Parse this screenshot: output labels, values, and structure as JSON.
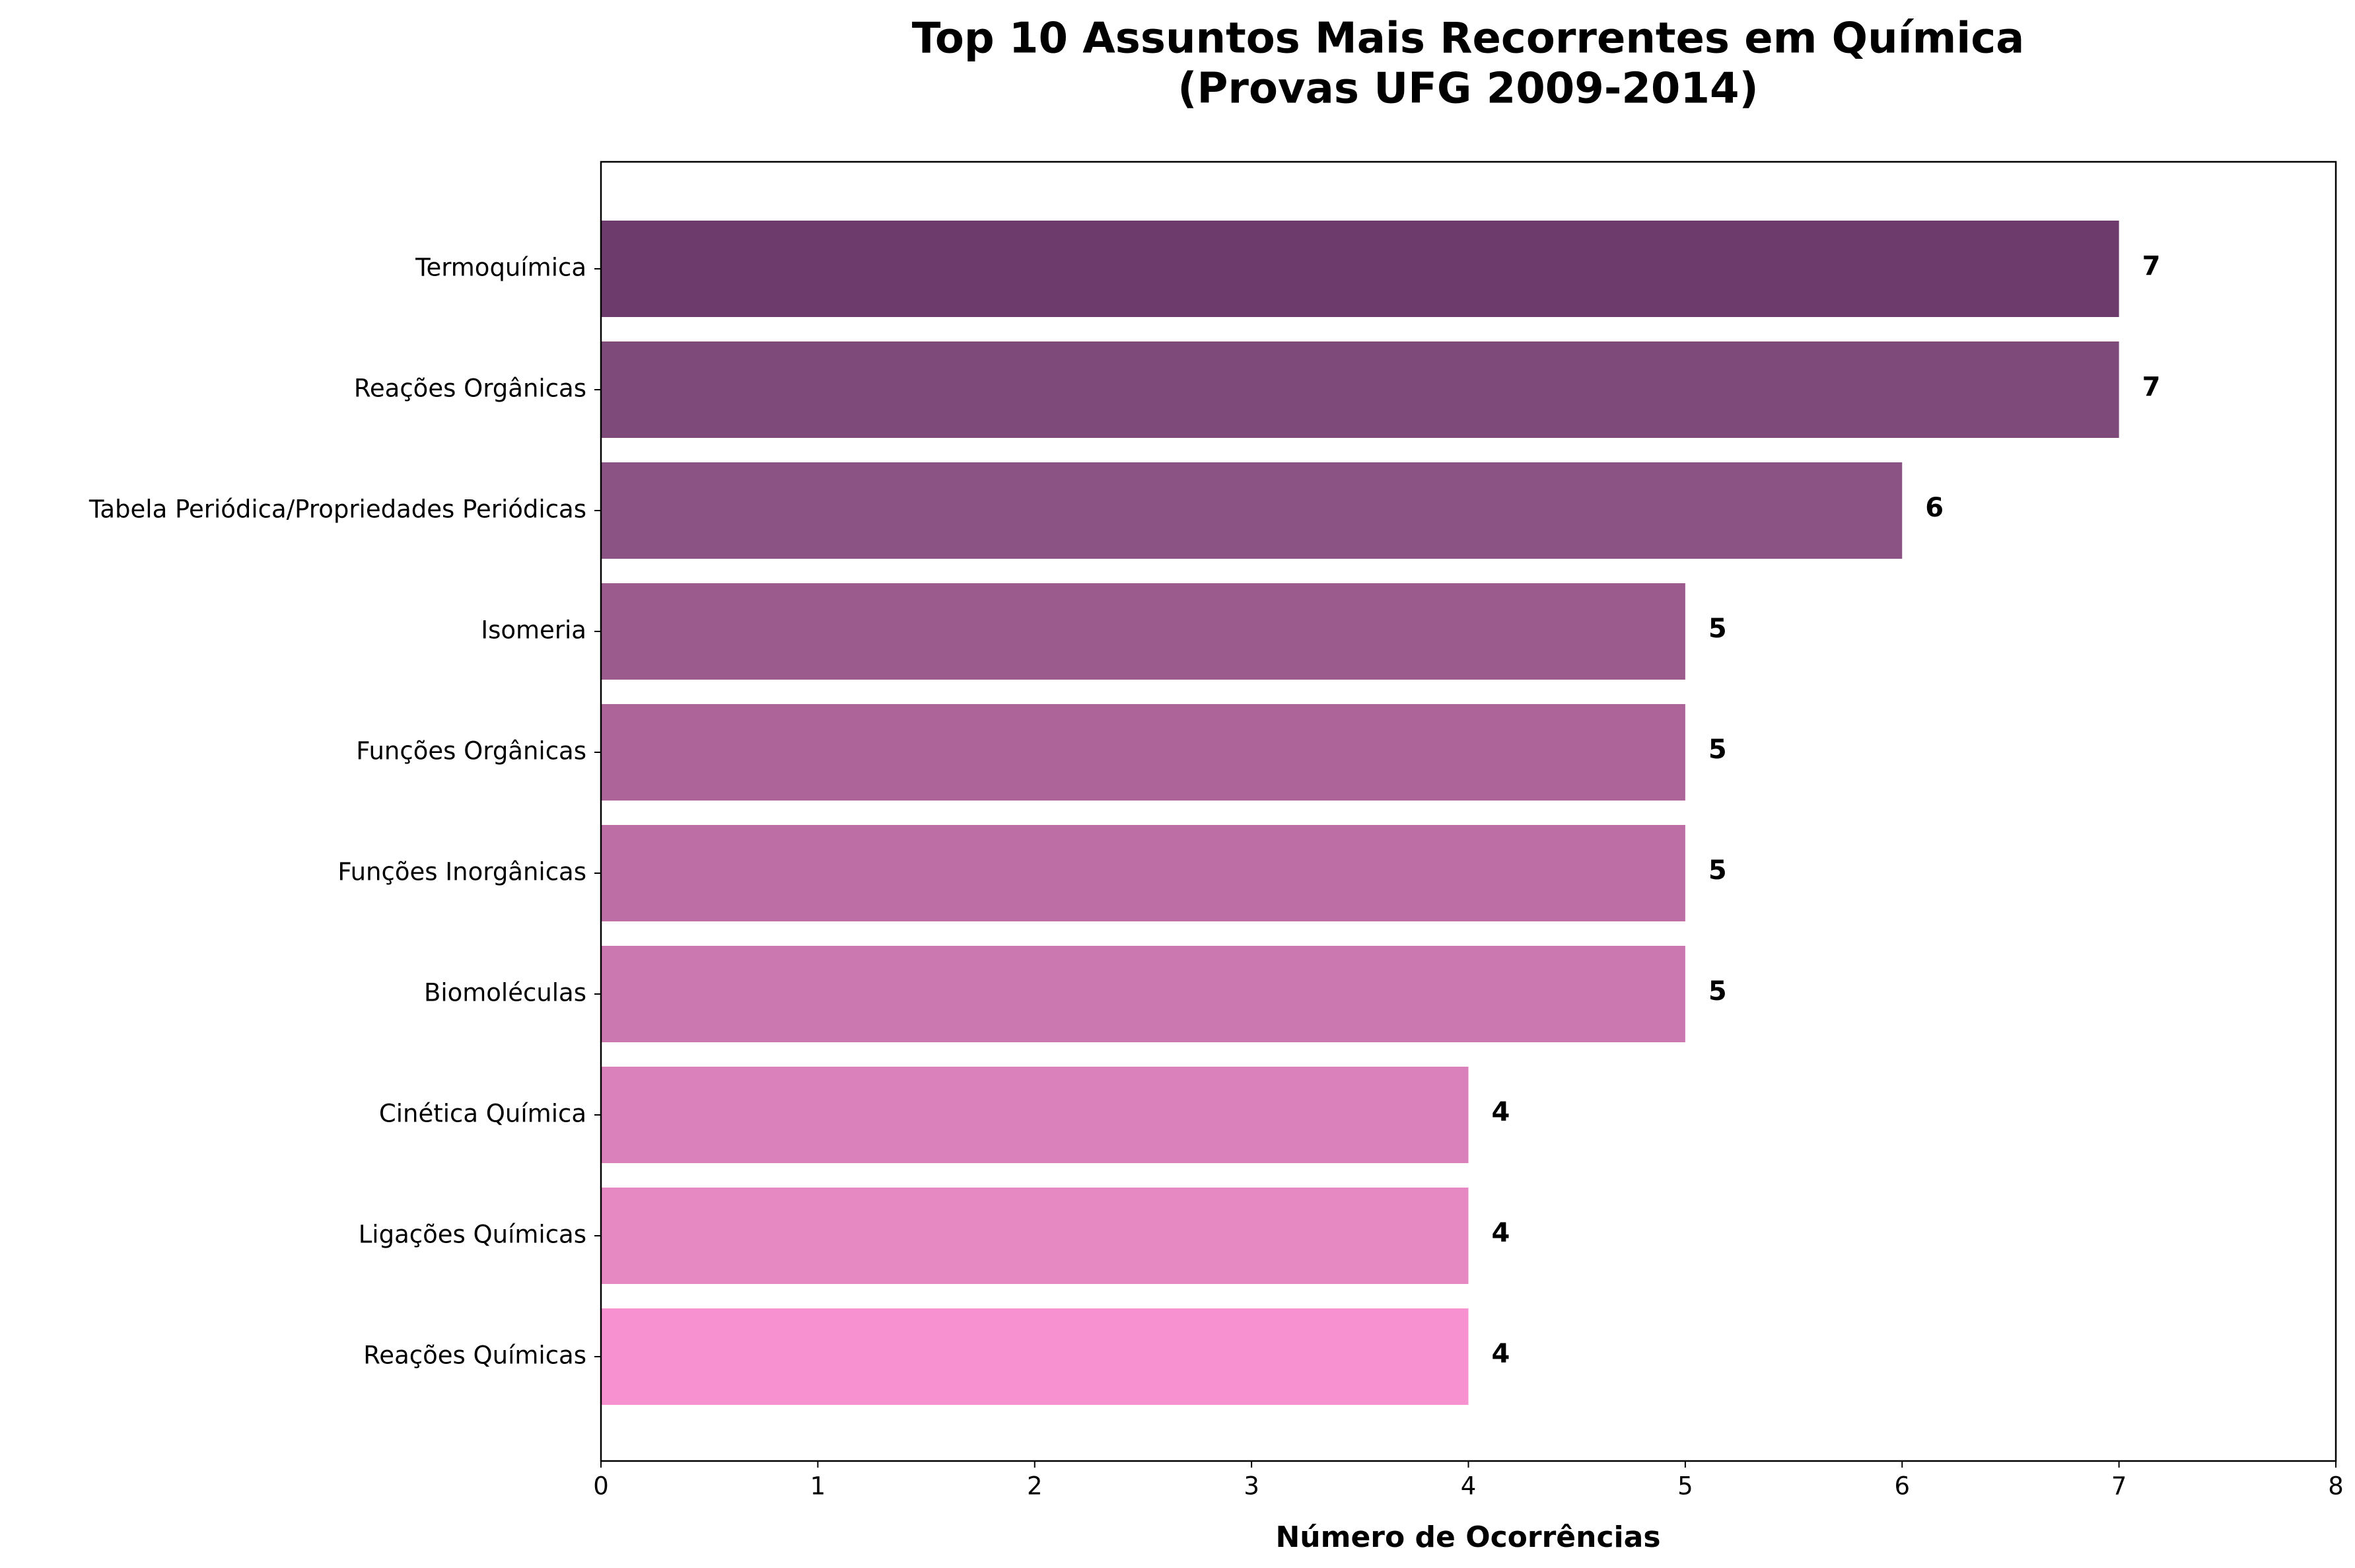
{
  "chart_data": {
    "type": "barh",
    "title": "Top 10 Assuntos Mais Recorrentes em Química",
    "subtitle": "(Provas UFG 2009-2014)",
    "x_label": "Número de Ocorrências",
    "categories": [
      "Termoquímica",
      "Reações Orgânicas",
      "Tabela Periódica/Propriedades Periódicas",
      "Isomeria",
      "Funções Orgânicas",
      "Funções Inorgânicas",
      "Biomoléculas",
      "Cinética Química",
      "Ligações Químicas",
      "Reações Químicas"
    ],
    "values": [
      7,
      7,
      6,
      5,
      5,
      5,
      5,
      4,
      4,
      4
    ],
    "colors": [
      "#6d3c6c",
      "#7d4a7a",
      "#8b5284",
      "#9b5b8c",
      "#ad6599",
      "#bd6fa5",
      "#cb78b0",
      "#da80ba",
      "#e689c3",
      "#f791cf"
    ],
    "xlim": [
      0,
      8
    ],
    "xticks": [
      0,
      1,
      2,
      3,
      4,
      5,
      6,
      7,
      8
    ]
  }
}
